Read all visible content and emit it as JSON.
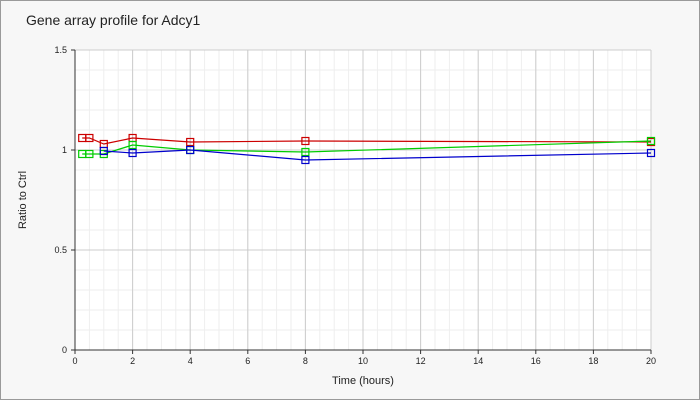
{
  "chart_data": {
    "type": "line",
    "title": "Gene array profile for Adcy1",
    "xlabel": "Time (hours)",
    "ylabel": "Ratio to Ctrl",
    "xlim": [
      0,
      20
    ],
    "ylim": [
      0,
      1.5
    ],
    "x_ticks": [
      "0",
      "2",
      "4",
      "6",
      "8",
      "10",
      "12",
      "14",
      "16",
      "18",
      "20"
    ],
    "y_ticks": [
      "0",
      "0.5",
      "1",
      "1.5"
    ],
    "grid": true,
    "series": [
      {
        "color": "#cc0000",
        "points": [
          [
            0.25,
            1.06
          ],
          [
            0.5,
            1.06
          ],
          [
            1,
            1.03
          ],
          [
            2,
            1.06
          ],
          [
            4,
            1.04
          ],
          [
            8,
            1.045
          ],
          [
            20,
            1.04
          ]
        ]
      },
      {
        "color": "#00cc00",
        "points": [
          [
            0.25,
            0.98
          ],
          [
            0.5,
            0.98
          ],
          [
            1,
            0.98
          ],
          [
            2,
            1.025
          ],
          [
            4,
            1.0
          ],
          [
            8,
            0.99
          ],
          [
            20,
            1.045
          ]
        ]
      },
      {
        "color": "#0000cc",
        "points": [
          [
            1,
            0.995
          ],
          [
            2,
            0.985
          ],
          [
            4,
            1.0
          ],
          [
            8,
            0.95
          ],
          [
            20,
            0.985
          ]
        ]
      }
    ]
  }
}
